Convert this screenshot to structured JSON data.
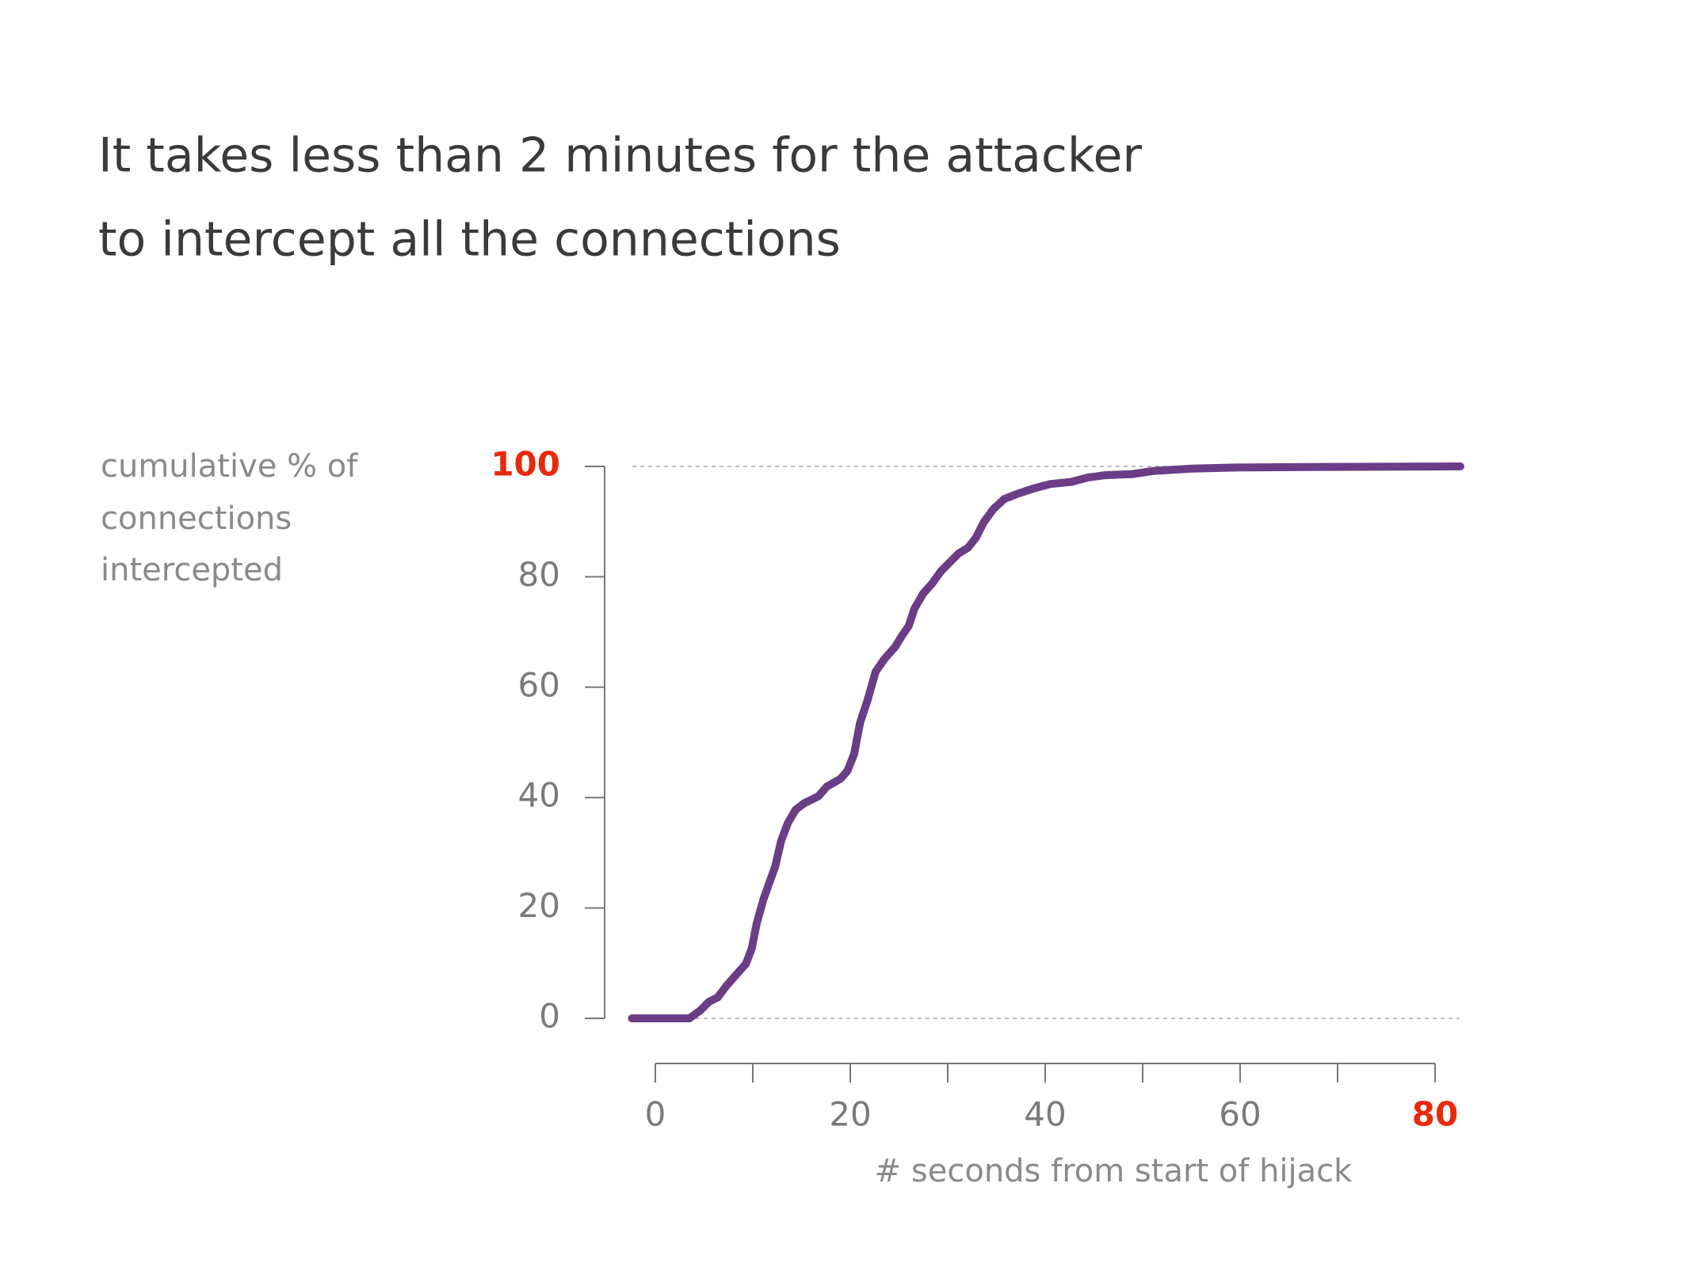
{
  "chart_data": {
    "type": "line",
    "title": [
      "It takes less than 2 minutes for the attacker",
      "to intercept all the connections"
    ],
    "ylabel": [
      "cumulative % of",
      "connections",
      "intercepted"
    ],
    "xlabel": "# seconds from start of hijack",
    "x": [
      -2.4,
      3.5,
      4.6,
      5.5,
      6.4,
      7.3,
      8.2,
      9.3,
      9.9,
      10.4,
      11.1,
      11.7,
      12.3,
      12.9,
      13.6,
      14.4,
      15.3,
      16.7,
      17.6,
      19.0,
      19.7,
      20.4,
      21.0,
      21.8,
      22.6,
      23.5,
      24.6,
      25.3,
      26.0,
      26.6,
      27.5,
      28.4,
      29.3,
      30.2,
      31.1,
      32.1,
      32.9,
      33.7,
      34.7,
      35.8,
      37.1,
      38.8,
      40.5,
      42.7,
      44.4,
      46.1,
      48.9,
      51.2,
      55.1,
      59.6,
      67.4,
      82.6
    ],
    "series": [
      {
        "name": "connections intercepted",
        "color": "#6b3d86",
        "values": [
          0,
          0,
          1.4,
          3.0,
          3.8,
          5.9,
          7.7,
          9.9,
          12.7,
          17.2,
          21.6,
          24.6,
          27.5,
          32.1,
          35.4,
          37.8,
          39.0,
          40.2,
          42.0,
          43.4,
          44.8,
          47.9,
          53.5,
          57.8,
          62.8,
          65.1,
          67.3,
          69.3,
          71.1,
          74.3,
          77.0,
          78.8,
          81.0,
          82.6,
          84.2,
          85.3,
          87.1,
          89.9,
          92.3,
          94.1,
          95.0,
          96.0,
          96.8,
          97.2,
          98.0,
          98.4,
          98.6,
          99.2,
          99.6,
          99.8,
          99.9,
          100
        ]
      }
    ],
    "xlim": [
      0,
      80
    ],
    "xticks": [
      0,
      20,
      40,
      60,
      80
    ],
    "xminorticks": [
      10,
      30,
      50,
      70
    ],
    "ylim": [
      0,
      100
    ],
    "yticks": [
      0,
      20,
      40,
      60,
      80,
      100
    ],
    "grid_y": [
      0,
      100
    ],
    "highlight": {
      "x": 80,
      "y": 100,
      "color": "#e8290b"
    }
  }
}
